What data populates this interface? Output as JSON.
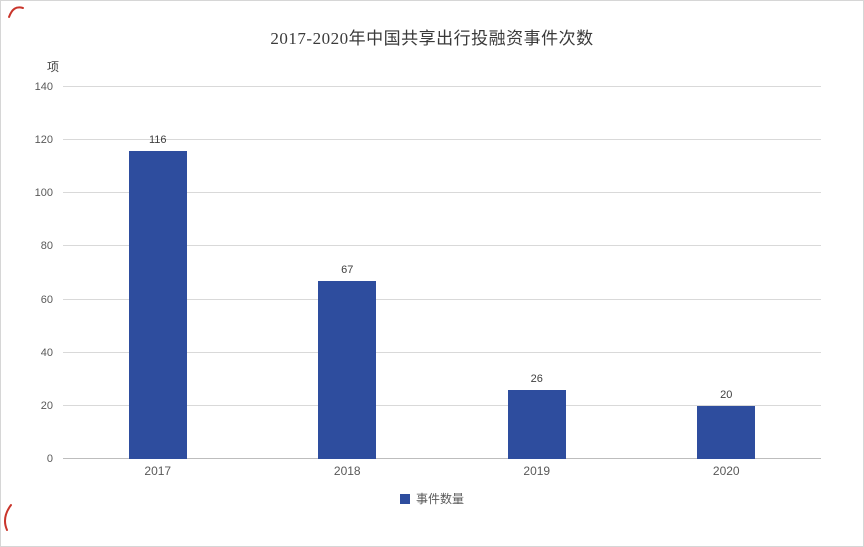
{
  "chart_data": {
    "type": "bar",
    "title": "2017-2020年中国共享出行投融资事件次数",
    "categories": [
      "2017",
      "2018",
      "2019",
      "2020"
    ],
    "values": [
      116,
      67,
      26,
      20
    ],
    "series_name": "事件数量",
    "xlabel": "",
    "ylabel": "项",
    "ylim": [
      0,
      140
    ],
    "ytick_step": 20,
    "yticks": [
      0,
      20,
      40,
      60,
      80,
      100,
      120,
      140
    ],
    "bar_color": "#2e4d9e",
    "grid": true,
    "legend_position": "bottom"
  },
  "legend": {
    "label": "事件数量"
  },
  "annotation": {
    "mark_color": "#c9352b"
  }
}
